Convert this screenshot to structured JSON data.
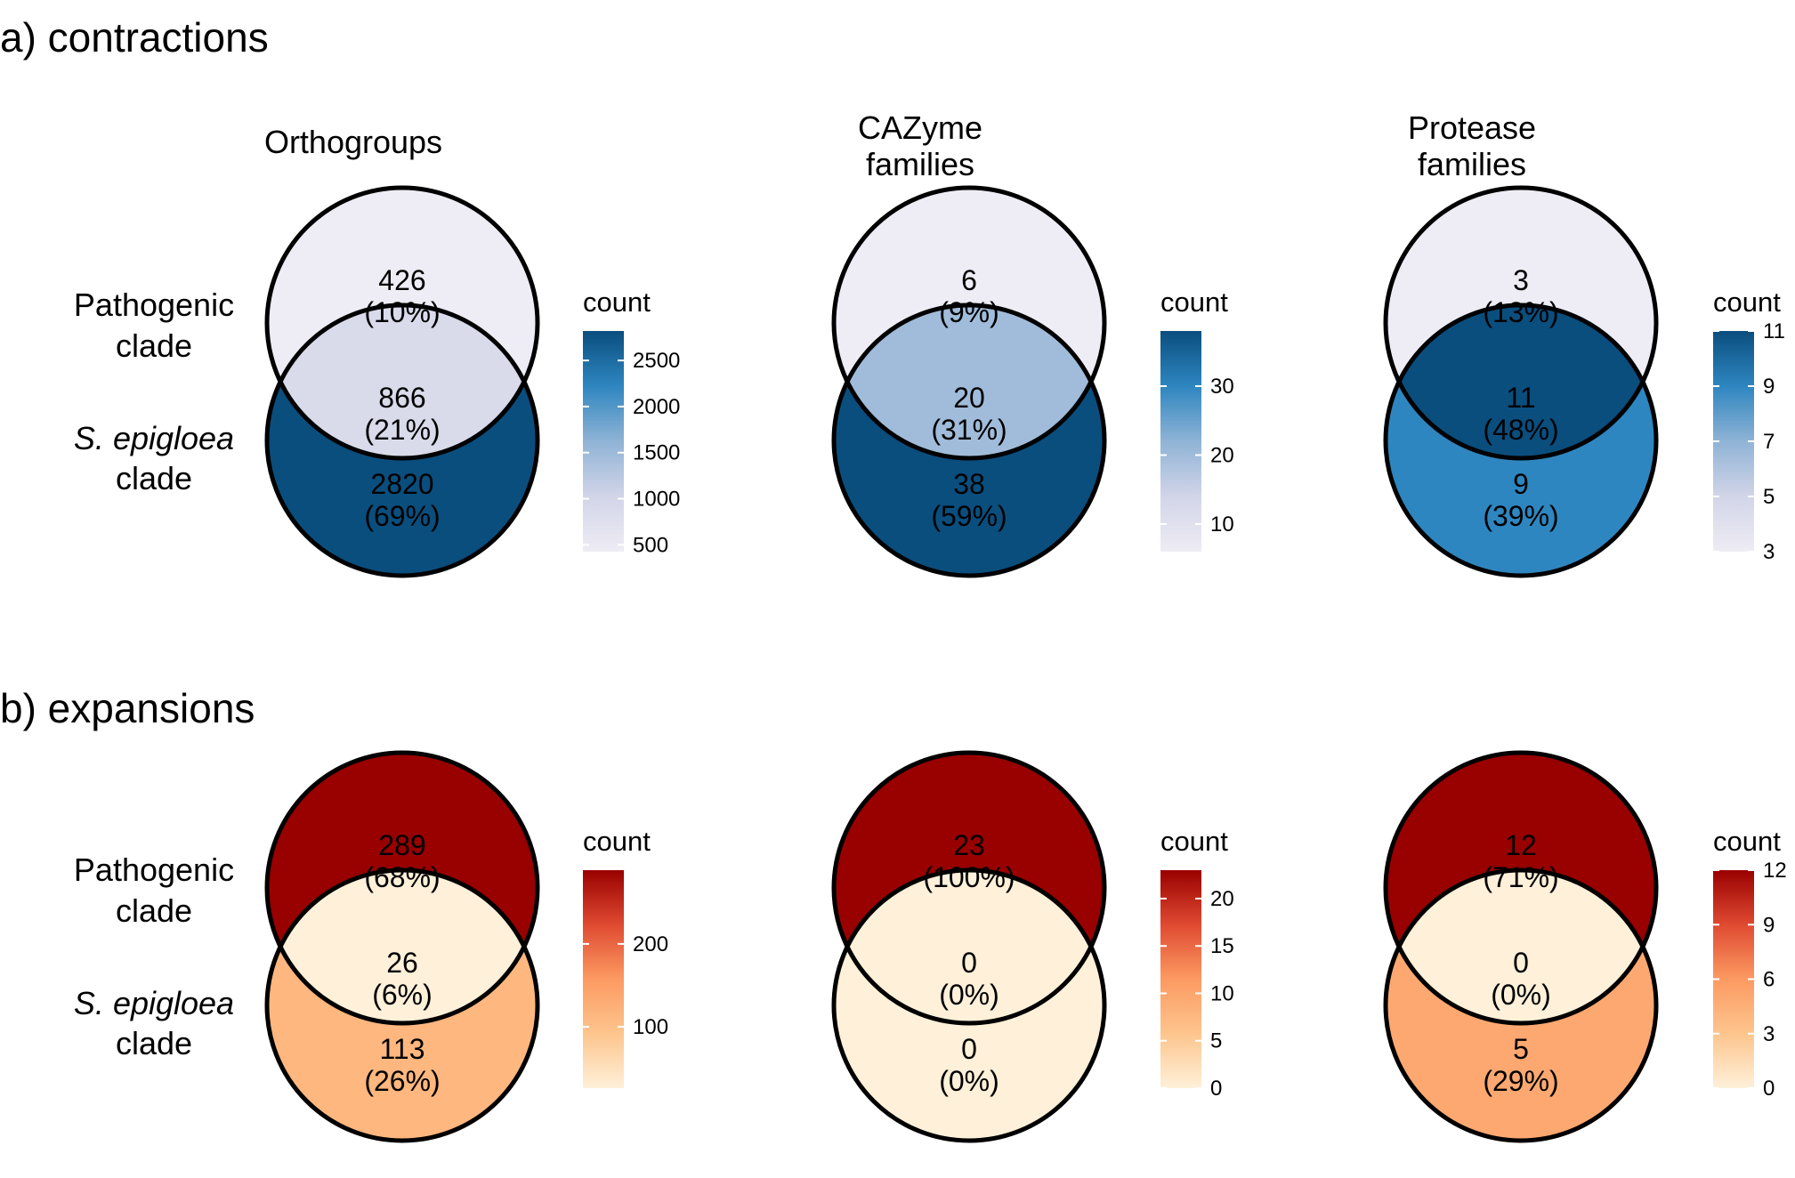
{
  "sections": [
    {
      "title": "a) contractions",
      "palette": "blues"
    },
    {
      "title": "b) expansions",
      "palette": "oranges"
    }
  ],
  "column_titles": [
    [
      "Orthogroups"
    ],
    [
      "CAZyme",
      "families"
    ],
    [
      "Protease",
      "families"
    ]
  ],
  "row_labels": {
    "pathogenic": [
      "Pathogenic",
      "clade"
    ],
    "epigloea": [
      "S. epigloea",
      "clade"
    ]
  },
  "colors": {
    "blues": [
      "#eeecf4",
      "#d2d5e8",
      "#8fb3d5",
      "#2e86c0",
      "#0a4e7e"
    ],
    "oranges": [
      "#fef0d9",
      "#fdc58d",
      "#fc9a62",
      "#df4a31",
      "#990000"
    ],
    "outline": "#000000"
  },
  "chart_data": [
    {
      "type": "venn",
      "section": "a) contractions",
      "title": "Orthogroups",
      "sets": [
        "Pathogenic clade",
        "S. epigloea clade"
      ],
      "regions": [
        {
          "region": "pathogenic_only",
          "count": "426",
          "percent": "(10%)",
          "value": 426
        },
        {
          "region": "intersection",
          "count": "866",
          "percent": "(21%)",
          "value": 866
        },
        {
          "region": "epigloea_only",
          "count": "2820",
          "percent": "(69%)",
          "value": 2820
        }
      ],
      "legend": {
        "title": "count",
        "range": [
          426,
          2820
        ],
        "ticks": [
          500,
          1000,
          1500,
          2000,
          2500
        ]
      }
    },
    {
      "type": "venn",
      "section": "a) contractions",
      "title": "CAZyme families",
      "sets": [
        "Pathogenic clade",
        "S. epigloea clade"
      ],
      "regions": [
        {
          "region": "pathogenic_only",
          "count": "6",
          "percent": "(9%)",
          "value": 6
        },
        {
          "region": "intersection",
          "count": "20",
          "percent": "(31%)",
          "value": 20
        },
        {
          "region": "epigloea_only",
          "count": "38",
          "percent": "(59%)",
          "value": 38
        }
      ],
      "legend": {
        "title": "count",
        "range": [
          6,
          38
        ],
        "ticks": [
          10,
          20,
          30
        ]
      }
    },
    {
      "type": "venn",
      "section": "a) contractions",
      "title": "Protease families",
      "sets": [
        "Pathogenic clade",
        "S. epigloea clade"
      ],
      "regions": [
        {
          "region": "pathogenic_only",
          "count": "3",
          "percent": "(13%)",
          "value": 3
        },
        {
          "region": "intersection",
          "count": "11",
          "percent": "(48%)",
          "value": 11
        },
        {
          "region": "epigloea_only",
          "count": "9",
          "percent": "(39%)",
          "value": 9
        }
      ],
      "legend": {
        "title": "count",
        "range": [
          3,
          11
        ],
        "ticks": [
          3,
          5,
          7,
          9,
          11
        ]
      }
    },
    {
      "type": "venn",
      "section": "b) expansions",
      "title": "Orthogroups",
      "sets": [
        "Pathogenic clade",
        "S. epigloea clade"
      ],
      "regions": [
        {
          "region": "pathogenic_only",
          "count": "289",
          "percent": "(68%)",
          "value": 289
        },
        {
          "region": "intersection",
          "count": "26",
          "percent": "(6%)",
          "value": 26
        },
        {
          "region": "epigloea_only",
          "count": "113",
          "percent": "(26%)",
          "value": 113
        }
      ],
      "legend": {
        "title": "count",
        "range": [
          26,
          289
        ],
        "ticks": [
          100,
          200
        ]
      }
    },
    {
      "type": "venn",
      "section": "b) expansions",
      "title": "CAZyme families",
      "sets": [
        "Pathogenic clade",
        "S. epigloea clade"
      ],
      "regions": [
        {
          "region": "pathogenic_only",
          "count": "23",
          "percent": "(100%)",
          "value": 23
        },
        {
          "region": "intersection",
          "count": "0",
          "percent": "(0%)",
          "value": 0
        },
        {
          "region": "epigloea_only",
          "count": "0",
          "percent": "(0%)",
          "value": 0
        }
      ],
      "legend": {
        "title": "count",
        "range": [
          0,
          23
        ],
        "ticks": [
          0,
          5,
          10,
          15,
          20
        ]
      }
    },
    {
      "type": "venn",
      "section": "b) expansions",
      "title": "Protease families",
      "sets": [
        "Pathogenic clade",
        "S. epigloea clade"
      ],
      "regions": [
        {
          "region": "pathogenic_only",
          "count": "12",
          "percent": "(71%)",
          "value": 12
        },
        {
          "region": "intersection",
          "count": "0",
          "percent": "(0%)",
          "value": 0
        },
        {
          "region": "epigloea_only",
          "count": "5",
          "percent": "(29%)",
          "value": 5
        }
      ],
      "legend": {
        "title": "count",
        "range": [
          0,
          12
        ],
        "ticks": [
          0,
          3,
          6,
          9,
          12
        ]
      }
    }
  ]
}
